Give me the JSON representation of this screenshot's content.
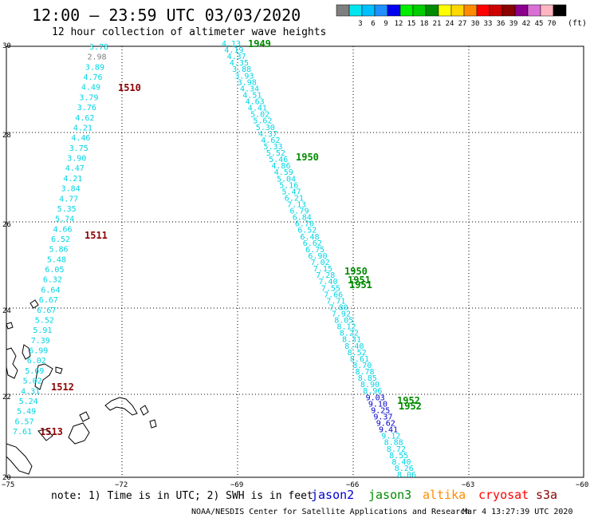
{
  "header": {
    "title": "12:00 – 23:59 UTC 03/03/2020",
    "subtitle": "12 hour collection of altimeter wave heights"
  },
  "colorbar": {
    "unit": "(ft)",
    "swatches": [
      {
        "color": "#7f7f7f",
        "label": ""
      },
      {
        "color": "#00e5ee",
        "label": "3"
      },
      {
        "color": "#00bfff",
        "label": "6"
      },
      {
        "color": "#1e90ff",
        "label": "9"
      },
      {
        "color": "#0000ee",
        "label": "12"
      },
      {
        "color": "#00ee00",
        "label": "15"
      },
      {
        "color": "#00cd00",
        "label": "18"
      },
      {
        "color": "#008b00",
        "label": "21"
      },
      {
        "color": "#ffff00",
        "label": "24"
      },
      {
        "color": "#ffd700",
        "label": "27"
      },
      {
        "color": "#ff8c00",
        "label": "30"
      },
      {
        "color": "#ff0000",
        "label": "33"
      },
      {
        "color": "#cd0000",
        "label": "36"
      },
      {
        "color": "#8b0000",
        "label": "39"
      },
      {
        "color": "#8b008b",
        "label": "42"
      },
      {
        "color": "#da70d6",
        "label": "45"
      },
      {
        "color": "#ffb6c1",
        "label": "70"
      },
      {
        "color": "#000000",
        "label": ""
      }
    ]
  },
  "axes": {
    "lat_labels": [
      "30",
      "28",
      "26",
      "24",
      "22",
      "20"
    ],
    "lon_labels": [
      "−75",
      "−72",
      "−69",
      "−66",
      "−63",
      "−60"
    ]
  },
  "tracks": {
    "west": {
      "values": [
        "3.78",
        "2.98",
        "3.89",
        "4.76",
        "4.49",
        "3.79",
        "3.76",
        "4.62",
        "4.21",
        "4.46",
        "3.75",
        "3.90",
        "4.47",
        "4.21",
        "3.84",
        "4.77",
        "5.35",
        "5.74",
        "4.66",
        "6.52",
        "5.86",
        "5.48",
        "6.05",
        "6.32",
        "6.64",
        "6.67",
        "6.67",
        "5.52",
        "5.91",
        "7.39",
        "6.99",
        "6.02",
        "5.69",
        "5.02",
        "4.31",
        "5.24",
        "5.49",
        "6.57",
        "7.61"
      ],
      "times": [
        "1510",
        "1511",
        "1512",
        "1513"
      ]
    },
    "east": {
      "values": [
        "4.13",
        "4.19",
        "4.37",
        "4.35",
        "3.88",
        "3.93",
        "3.98",
        "4.34",
        "4.51",
        "4.63",
        "4.41",
        "5.02",
        "5.62",
        "5.30",
        "4.37",
        "4.62",
        "5.33",
        "5.52",
        "5.46",
        "4.86",
        "4.59",
        "5.04",
        "5.16",
        "5.47",
        "6.21",
        "7.13",
        "6.79",
        "6.84",
        "6.70",
        "6.52",
        "6.48",
        "6.62",
        "6.75",
        "6.90",
        "7.02",
        "7.15",
        "7.28",
        "7.40",
        "7.55",
        "7.66",
        "7.71",
        "7.80",
        "7.92",
        "8.05",
        "8.12",
        "8.22",
        "8.31",
        "8.40",
        "8.52",
        "8.61",
        "8.70",
        "8.78",
        "8.85",
        "8.90",
        "8.96",
        "9.03",
        "9.10",
        "9.25",
        "9.37",
        "9.62",
        "9.41",
        "9.12",
        "8.88",
        "8.72",
        "8.55",
        "8.40",
        "8.26",
        "8.06"
      ],
      "times": [
        "1949",
        "1950",
        "1950",
        "1951",
        "1951",
        "1952",
        "1952"
      ]
    }
  },
  "footer": {
    "note": "note:  1) Time is in UTC;  2) SWH is in feet",
    "satellites": [
      {
        "name": "jason2",
        "color": "#0000cd"
      },
      {
        "name": "jason3",
        "color": "#008b00"
      },
      {
        "name": "altika",
        "color": "#ff8c00"
      },
      {
        "name": "cryosat",
        "color": "#ff0000"
      },
      {
        "name": "s3a",
        "color": "#8b0000"
      }
    ],
    "credit": "NOAA/NESDIS Center for Satellite Applications and Research",
    "timestamp": "Mar  4 13:27:39 UTC 2020"
  },
  "colors": {
    "value_text": "#00d5e5",
    "west_time": "#8b0000",
    "east_time": "#008b00",
    "grid": "#000000"
  }
}
